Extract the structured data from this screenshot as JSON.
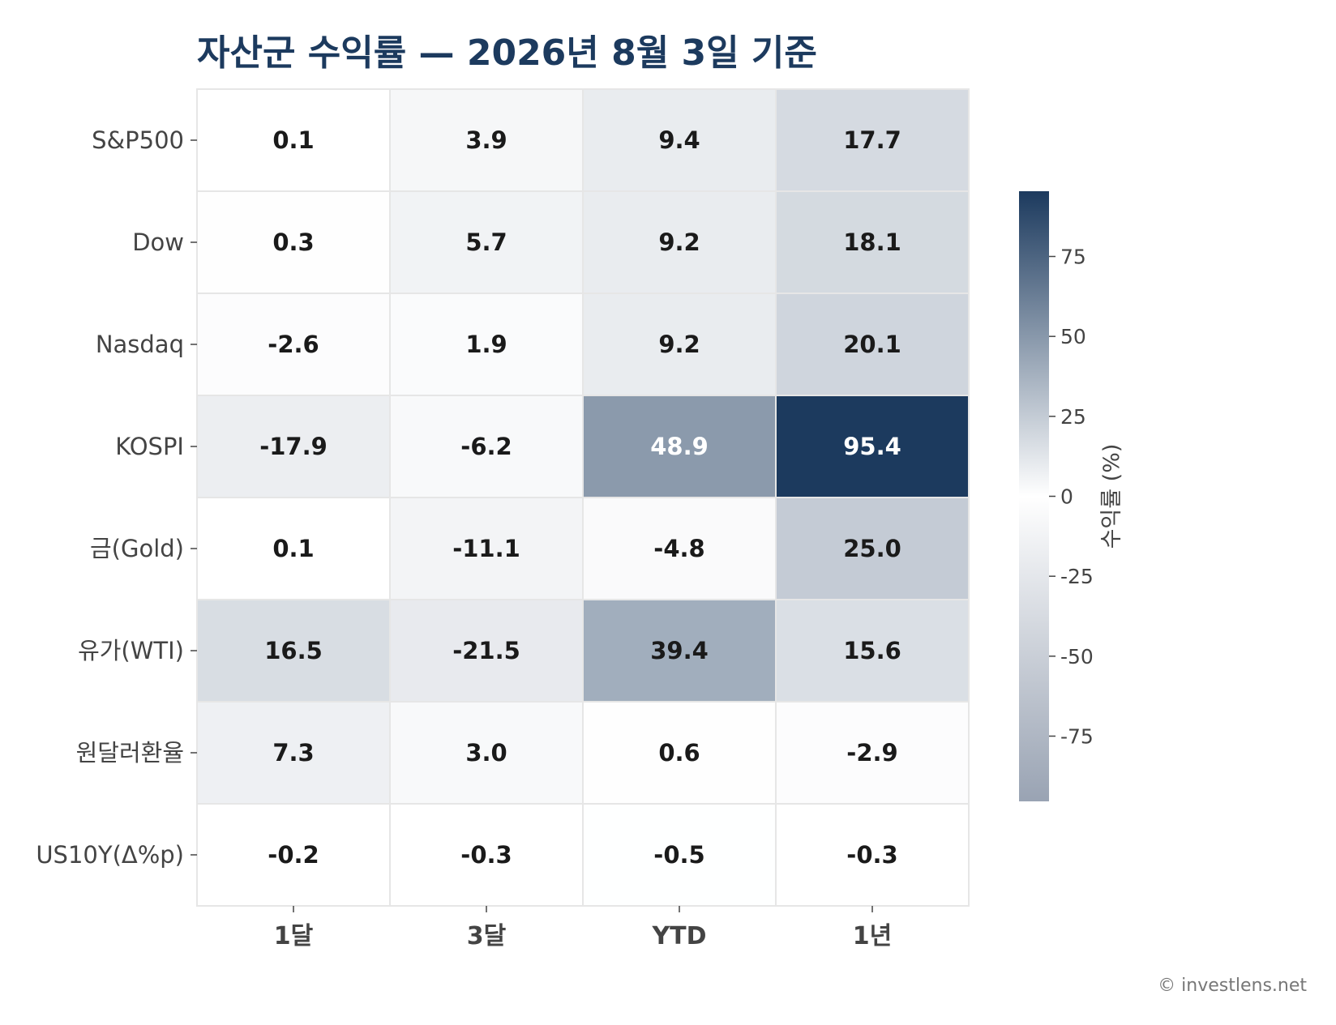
{
  "chart_data": {
    "type": "heatmap",
    "title": "자산군 수익률 — 2026년 8월 3일 기준",
    "rows": [
      "S&P500",
      "Dow",
      "Nasdaq",
      "KOSPI",
      "금(Gold)",
      "유가(WTI)",
      "원달러환율",
      "US10Y(Δ%p)"
    ],
    "columns": [
      "1달",
      "3달",
      "YTD",
      "1년"
    ],
    "values": [
      [
        0.1,
        3.9,
        9.4,
        17.7
      ],
      [
        0.3,
        5.7,
        9.2,
        18.1
      ],
      [
        -2.6,
        1.9,
        9.2,
        20.1
      ],
      [
        -17.9,
        -6.2,
        48.9,
        95.4
      ],
      [
        0.1,
        -11.1,
        -4.8,
        25.0
      ],
      [
        16.5,
        -21.5,
        39.4,
        15.6
      ],
      [
        7.3,
        3.0,
        0.6,
        -2.9
      ],
      [
        -0.2,
        -0.3,
        -0.5,
        -0.3
      ]
    ],
    "colorbar": {
      "label": "수익률 (%)",
      "range": [
        -95.4,
        95.4
      ],
      "ticks": [
        75,
        50,
        25,
        0,
        -25,
        -50,
        -75
      ]
    },
    "colors": {
      "max": "#1c3a5e",
      "zero": "#ffffff",
      "min": "#99a3b3"
    },
    "grid": true,
    "legend": "right"
  },
  "credit": "© investlens.net"
}
